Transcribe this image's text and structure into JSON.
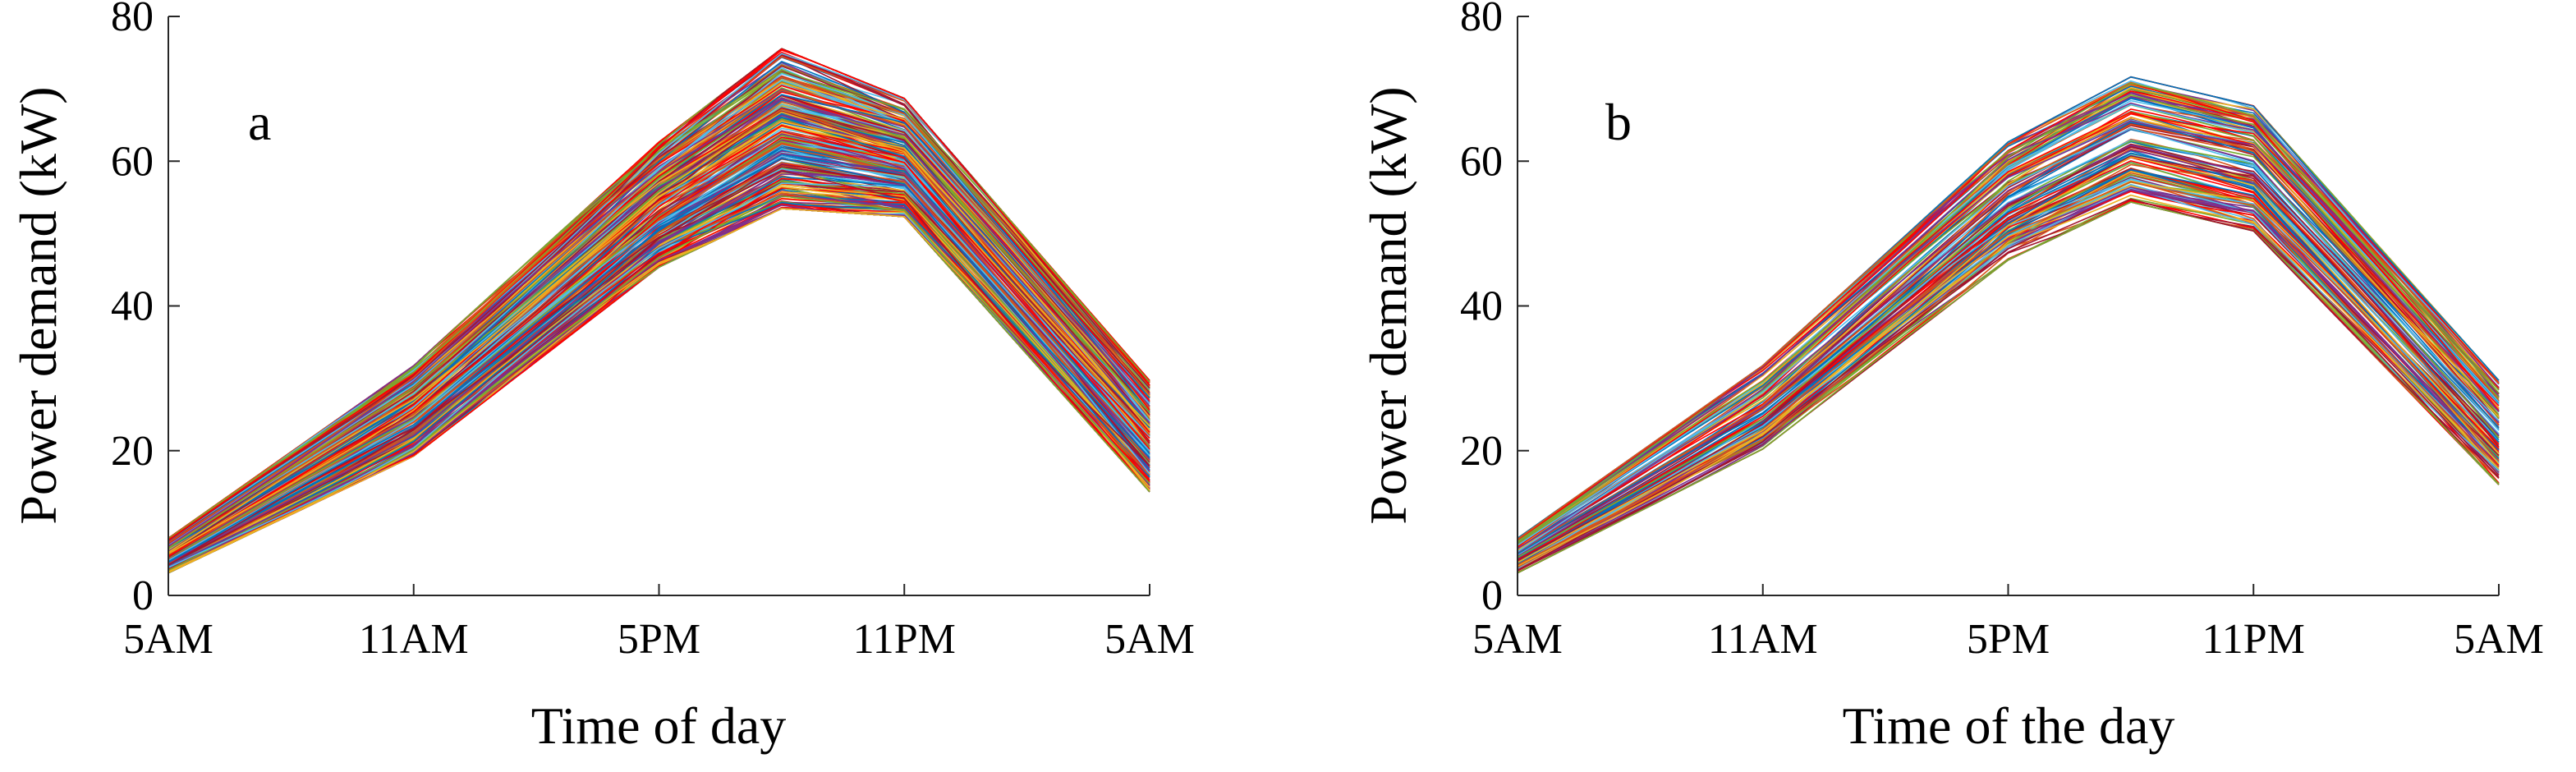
{
  "chart_data": [
    {
      "type": "line",
      "panel_label": "a",
      "xlabel": "Time of day",
      "ylabel": "Power demand (kW)",
      "x_tick_labels": [
        "5AM",
        "11AM",
        "5PM",
        "11PM",
        "5AM"
      ],
      "x_tick_hours": [
        0,
        6,
        12,
        18,
        24
      ],
      "xlim": [
        0,
        24
      ],
      "ylim": [
        0,
        80
      ],
      "y_ticks": [
        0,
        20,
        40,
        60,
        80
      ],
      "n_series": 300,
      "envelope": {
        "hours": [
          0,
          6,
          12,
          15,
          18,
          24
        ],
        "min": [
          3,
          19,
          45,
          53,
          52,
          14
        ],
        "max": [
          8,
          32,
          63,
          76,
          69,
          30
        ]
      },
      "colors": [
        "#0072BD",
        "#D95319",
        "#EDB120",
        "#7E2F8E",
        "#77AC30",
        "#4DBEEE",
        "#A2142F",
        "#ff0000"
      ]
    },
    {
      "type": "line",
      "panel_label": "b",
      "xlabel": "Time of the day",
      "ylabel": "Power demand (kW)",
      "x_tick_labels": [
        "5AM",
        "11AM",
        "5PM",
        "11PM",
        "5AM"
      ],
      "x_tick_hours": [
        0,
        6,
        12,
        18,
        24
      ],
      "xlim": [
        0,
        24
      ],
      "ylim": [
        0,
        80
      ],
      "y_ticks": [
        0,
        20,
        40,
        60,
        80
      ],
      "n_series": 150,
      "envelope": {
        "hours": [
          0,
          6,
          12,
          15,
          18,
          24
        ],
        "min": [
          3,
          20,
          46,
          54,
          50,
          15
        ],
        "max": [
          8,
          32,
          63,
          72,
          68,
          30
        ]
      },
      "colors": [
        "#0072BD",
        "#D95319",
        "#EDB120",
        "#7E2F8E",
        "#77AC30",
        "#4DBEEE",
        "#A2142F",
        "#ff0000"
      ]
    }
  ]
}
